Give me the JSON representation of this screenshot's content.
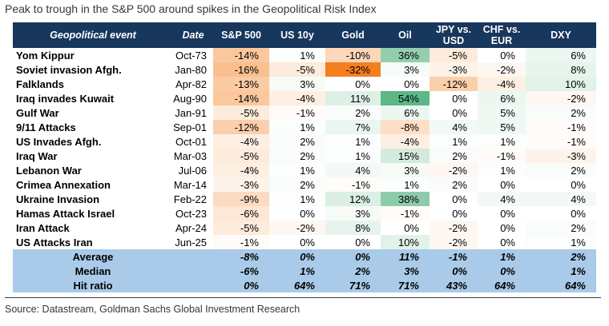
{
  "title": "Peak to trough in the S&P 500 around spikes in the Geopolitical Risk Index",
  "source": "Source: Datastream, Goldman Sachs Global Investment Research",
  "colors": {
    "header_bg": "#17375D",
    "header_text": "#FFFFFF",
    "summary_bg": "#A9CBE9",
    "heat_negative": "#F57E1F",
    "heat_positive": "#5DB786",
    "heat_scale_min": -32,
    "heat_scale_max": 54,
    "body_text": "#000000",
    "title_text": "#32373C",
    "rule": "#404040"
  },
  "chart_data": {
    "type": "table",
    "subtype": "heatmap",
    "title": "Peak to trough in the S&P 500 around spikes in the Geopolitical Risk Index",
    "unit": "%",
    "conditional_formatting": "orange shading = negative values, green shading = positive values, intensity scales with magnitude",
    "columns": [
      "Geopolitical event",
      "Date",
      "S&P 500",
      "US 10y",
      "Gold",
      "Oil",
      "JPY vs. USD",
      "CHF vs. EUR",
      "DXY"
    ],
    "rows": [
      {
        "event": "Yom Kippur",
        "date": "Oct-73",
        "values": [
          -14,
          1,
          -10,
          36,
          -5,
          0,
          6
        ]
      },
      {
        "event": "Soviet invasion Afgh.",
        "date": "Jan-80",
        "values": [
          -16,
          -5,
          -32,
          3,
          -3,
          -2,
          8
        ]
      },
      {
        "event": "Falklands",
        "date": "Apr-82",
        "values": [
          -13,
          3,
          0,
          0,
          -12,
          -4,
          10
        ]
      },
      {
        "event": "Iraq invades Kuwait",
        "date": "Aug-90",
        "values": [
          -14,
          -4,
          11,
          54,
          0,
          6,
          -2
        ]
      },
      {
        "event": "Gulf War",
        "date": "Jan-91",
        "values": [
          -5,
          -1,
          2,
          6,
          0,
          5,
          2
        ]
      },
      {
        "event": "9/11 Attacks",
        "date": "Sep-01",
        "values": [
          -12,
          1,
          7,
          -8,
          4,
          5,
          -1
        ]
      },
      {
        "event": "US Invades Afgh.",
        "date": "Oct-01",
        "values": [
          -4,
          2,
          1,
          -4,
          1,
          1,
          -1
        ]
      },
      {
        "event": "Iraq War",
        "date": "Mar-03",
        "values": [
          -5,
          2,
          1,
          15,
          2,
          -1,
          -3
        ]
      },
      {
        "event": "Lebanon War",
        "date": "Jul-06",
        "values": [
          -4,
          1,
          4,
          3,
          -2,
          1,
          2
        ]
      },
      {
        "event": "Crimea Annexation",
        "date": "Mar-14",
        "values": [
          -3,
          2,
          -1,
          1,
          2,
          0,
          0
        ]
      },
      {
        "event": "Ukraine Invasion",
        "date": "Feb-22",
        "values": [
          -9,
          1,
          12,
          38,
          0,
          4,
          4
        ]
      },
      {
        "event": "Hamas Attack Israel",
        "date": "Oct-23",
        "values": [
          -6,
          0,
          3,
          -1,
          0,
          0,
          0
        ]
      },
      {
        "event": "Iran Attack",
        "date": "Apr-24",
        "values": [
          -5,
          -2,
          8,
          0,
          -2,
          0,
          2
        ]
      },
      {
        "event": "US Attacks Iran",
        "date": "Jun-25",
        "values": [
          -1,
          0,
          0,
          10,
          -2,
          0,
          1
        ]
      }
    ],
    "summary_rows": [
      {
        "label": "Average",
        "values": [
          -8,
          0,
          0,
          11,
          -1,
          1,
          2
        ]
      },
      {
        "label": "Median",
        "values": [
          -6,
          1,
          2,
          3,
          0,
          0,
          1
        ]
      },
      {
        "label": "Hit ratio",
        "values": [
          0,
          64,
          71,
          71,
          43,
          64,
          64
        ]
      }
    ]
  }
}
